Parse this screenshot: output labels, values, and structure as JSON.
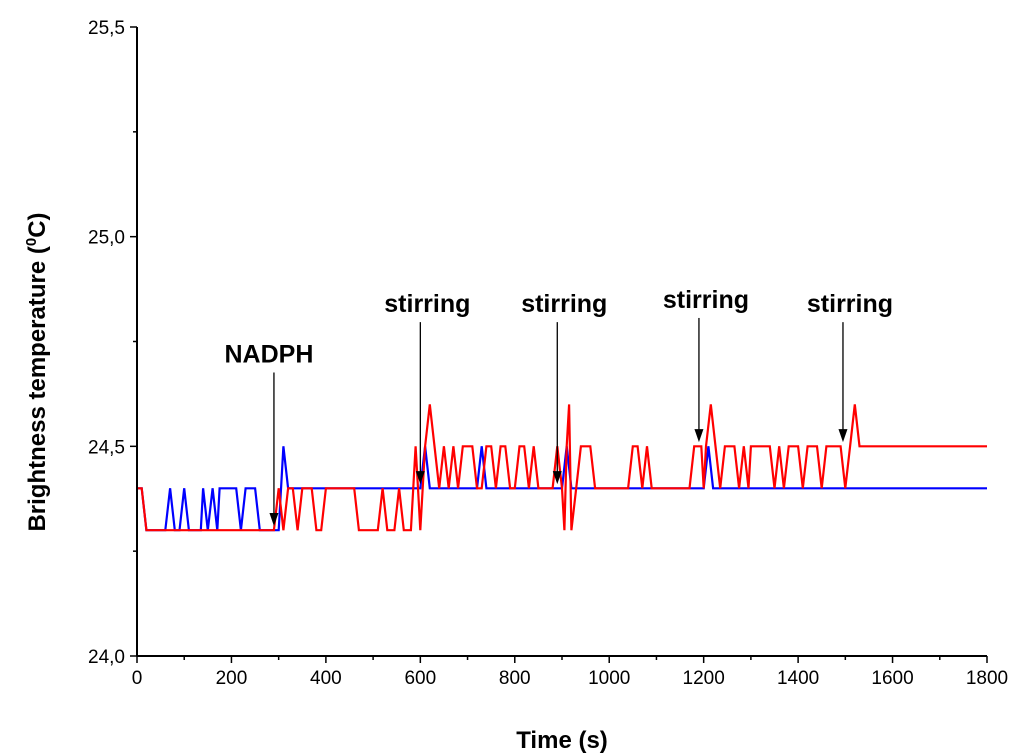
{
  "chart_data": {
    "type": "line",
    "xlabel": "Time (s)",
    "ylabel_main": "Brightness temperature (",
    "ylabel_sup": "0",
    "ylabel_tail": "C)",
    "xlim": [
      0,
      1800
    ],
    "ylim": [
      24.0,
      25.5
    ],
    "x_ticks": [
      0,
      200,
      400,
      600,
      800,
      1000,
      1200,
      1400,
      1600,
      1800
    ],
    "x_tick_labels": [
      "0",
      "200",
      "400",
      "600",
      "800",
      "1000",
      "1200",
      "1400",
      "1600",
      "1800"
    ],
    "y_ticks": [
      24.0,
      24.5,
      25.0,
      25.5
    ],
    "y_tick_labels": [
      "24,0",
      "24,5",
      "25,0",
      "25,5"
    ],
    "grid": false,
    "legend": "none",
    "series": [
      {
        "color": "#0000ff",
        "points": [
          [
            0,
            24.4
          ],
          [
            10,
            24.4
          ],
          [
            20,
            24.3
          ],
          [
            60,
            24.3
          ],
          [
            70,
            24.4
          ],
          [
            80,
            24.3
          ],
          [
            90,
            24.3
          ],
          [
            100,
            24.4
          ],
          [
            110,
            24.3
          ],
          [
            135,
            24.3
          ],
          [
            140,
            24.4
          ],
          [
            150,
            24.3
          ],
          [
            160,
            24.4
          ],
          [
            170,
            24.3
          ],
          [
            175,
            24.4
          ],
          [
            210,
            24.4
          ],
          [
            220,
            24.3
          ],
          [
            230,
            24.4
          ],
          [
            250,
            24.4
          ],
          [
            260,
            24.3
          ],
          [
            300,
            24.3
          ],
          [
            310,
            24.5
          ],
          [
            320,
            24.4
          ],
          [
            600,
            24.4
          ],
          [
            610,
            24.5
          ],
          [
            620,
            24.4
          ],
          [
            720,
            24.4
          ],
          [
            730,
            24.5
          ],
          [
            740,
            24.4
          ],
          [
            900,
            24.4
          ],
          [
            910,
            24.5
          ],
          [
            920,
            24.4
          ],
          [
            1200,
            24.4
          ],
          [
            1210,
            24.5
          ],
          [
            1220,
            24.4
          ],
          [
            1800,
            24.4
          ]
        ]
      },
      {
        "color": "#ff0000",
        "points": [
          [
            0,
            24.4
          ],
          [
            10,
            24.4
          ],
          [
            20,
            24.3
          ],
          [
            290,
            24.3
          ],
          [
            300,
            24.4
          ],
          [
            310,
            24.3
          ],
          [
            320,
            24.4
          ],
          [
            330,
            24.4
          ],
          [
            340,
            24.3
          ],
          [
            350,
            24.4
          ],
          [
            370,
            24.4
          ],
          [
            380,
            24.3
          ],
          [
            390,
            24.3
          ],
          [
            400,
            24.4
          ],
          [
            460,
            24.4
          ],
          [
            470,
            24.3
          ],
          [
            510,
            24.3
          ],
          [
            520,
            24.4
          ],
          [
            530,
            24.3
          ],
          [
            545,
            24.3
          ],
          [
            555,
            24.4
          ],
          [
            565,
            24.3
          ],
          [
            580,
            24.3
          ],
          [
            590,
            24.5
          ],
          [
            595,
            24.4
          ],
          [
            600,
            24.3
          ],
          [
            610,
            24.5
          ],
          [
            620,
            24.6
          ],
          [
            630,
            24.5
          ],
          [
            640,
            24.4
          ],
          [
            650,
            24.5
          ],
          [
            660,
            24.4
          ],
          [
            670,
            24.5
          ],
          [
            680,
            24.4
          ],
          [
            690,
            24.5
          ],
          [
            700,
            24.5
          ],
          [
            710,
            24.5
          ],
          [
            720,
            24.4
          ],
          [
            730,
            24.4
          ],
          [
            740,
            24.5
          ],
          [
            750,
            24.5
          ],
          [
            760,
            24.4
          ],
          [
            770,
            24.5
          ],
          [
            780,
            24.5
          ],
          [
            790,
            24.4
          ],
          [
            800,
            24.4
          ],
          [
            810,
            24.5
          ],
          [
            820,
            24.5
          ],
          [
            830,
            24.4
          ],
          [
            840,
            24.5
          ],
          [
            850,
            24.4
          ],
          [
            880,
            24.4
          ],
          [
            890,
            24.5
          ],
          [
            900,
            24.4
          ],
          [
            905,
            24.3
          ],
          [
            910,
            24.5
          ],
          [
            915,
            24.6
          ],
          [
            920,
            24.3
          ],
          [
            930,
            24.4
          ],
          [
            940,
            24.5
          ],
          [
            960,
            24.5
          ],
          [
            970,
            24.4
          ],
          [
            1040,
            24.4
          ],
          [
            1050,
            24.5
          ],
          [
            1060,
            24.5
          ],
          [
            1070,
            24.4
          ],
          [
            1080,
            24.5
          ],
          [
            1090,
            24.4
          ],
          [
            1170,
            24.4
          ],
          [
            1180,
            24.5
          ],
          [
            1195,
            24.5
          ],
          [
            1200,
            24.4
          ],
          [
            1205,
            24.5
          ],
          [
            1215,
            24.6
          ],
          [
            1225,
            24.5
          ],
          [
            1235,
            24.4
          ],
          [
            1245,
            24.5
          ],
          [
            1265,
            24.5
          ],
          [
            1275,
            24.4
          ],
          [
            1285,
            24.5
          ],
          [
            1295,
            24.4
          ],
          [
            1300,
            24.5
          ],
          [
            1340,
            24.5
          ],
          [
            1350,
            24.4
          ],
          [
            1360,
            24.5
          ],
          [
            1370,
            24.4
          ],
          [
            1380,
            24.5
          ],
          [
            1400,
            24.5
          ],
          [
            1410,
            24.4
          ],
          [
            1420,
            24.5
          ],
          [
            1440,
            24.5
          ],
          [
            1450,
            24.4
          ],
          [
            1460,
            24.5
          ],
          [
            1490,
            24.5
          ],
          [
            1500,
            24.4
          ],
          [
            1510,
            24.5
          ],
          [
            1520,
            24.6
          ],
          [
            1530,
            24.5
          ],
          [
            1800,
            24.5
          ]
        ]
      }
    ],
    "annotations": [
      {
        "text": "NADPH",
        "label_x": 290,
        "label_y": 24.7,
        "arrow_x": 290,
        "arrow_y": 24.31
      },
      {
        "text": "stirring",
        "label_x": 600,
        "label_y": 24.82,
        "arrow_x": 600,
        "arrow_y": 24.41
      },
      {
        "text": "stirring",
        "label_x": 890,
        "label_y": 24.82,
        "arrow_x": 890,
        "arrow_y": 24.41
      },
      {
        "text": "stirring",
        "label_x": 1190,
        "label_y": 24.83,
        "arrow_x": 1190,
        "arrow_y": 24.51
      },
      {
        "text": "stirring",
        "label_x": 1495,
        "label_y": 24.82,
        "arrow_x": 1495,
        "arrow_y": 24.51
      }
    ]
  }
}
